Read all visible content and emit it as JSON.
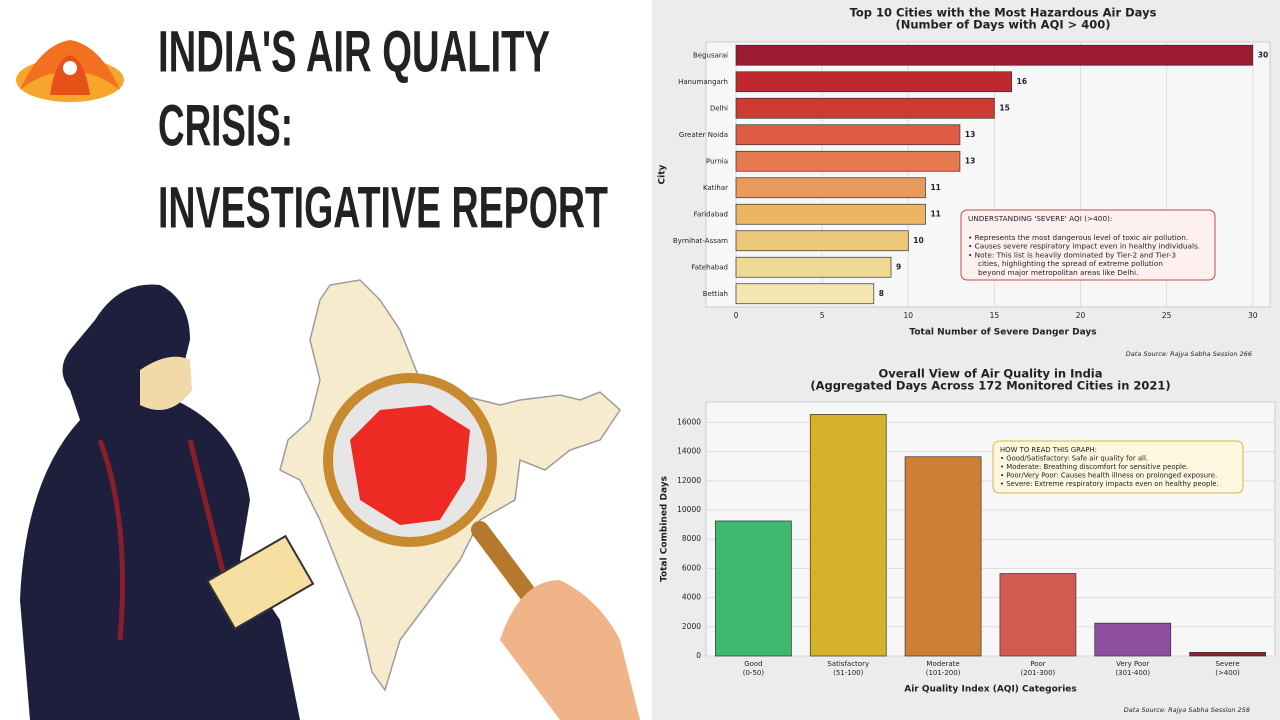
{
  "header": {
    "title_lines": [
      "INDIA'S AIR QUALITY",
      "CRISIS:",
      "INVESTIGATIVE REPORT"
    ]
  },
  "chart_data": [
    {
      "type": "bar",
      "orientation": "horizontal",
      "title": "Top 10 Cities with the Most Hazardous Air Days",
      "subtitle": "(Number of Days with AQI > 400)",
      "categories": [
        "Begusarai",
        "Hanumangarh",
        "Delhi",
        "Greater Noida",
        "Purnia",
        "Katihar",
        "Faridabad",
        "Byrnihat-Assam",
        "Fatehabad",
        "Bettiah"
      ],
      "values": [
        30,
        16,
        15,
        13,
        13,
        11,
        11,
        10,
        9,
        8
      ],
      "colors": [
        "#9b1b30",
        "#c0282f",
        "#cf3b32",
        "#de5b45",
        "#e57a4e",
        "#ea9a5a",
        "#ebb662",
        "#ecc97a",
        "#eeda94",
        "#f4e6b0"
      ],
      "xlim": [
        0,
        31
      ],
      "xticks": [
        0,
        5,
        10,
        15,
        20,
        25,
        30
      ],
      "grid": true,
      "x_label": "Total Number of Severe Danger Days",
      "y_label": "City",
      "annotation": [
        "UNDERSTANDING 'SEVERE' AQI (>400):",
        "• Represents the most dangerous level of toxic air pollution.",
        "• Causes severe respiratory impact even in healthy individuals.",
        "• Note: This list is heavily dominated by Tier-2 and Tier-3",
        "cities, highlighting the spread of extreme pollution",
        "beyond major metropolitan areas like Delhi."
      ],
      "source": "Data Source: Rajya Sabha Session 266"
    },
    {
      "type": "bar",
      "orientation": "vertical",
      "title": "Overall View of Air Quality in India",
      "subtitle": "(Aggregated Days Across 172 Monitored Cities in 2021)",
      "categories": [
        "Good",
        "Satisfactory",
        "Moderate",
        "Poor",
        "Very Poor",
        "Severe"
      ],
      "category_ranges": [
        "(0-50)",
        "(51-100)",
        "(101-200)",
        "(201-300)",
        "(301-400)",
        "(>400)"
      ],
      "values": [
        9250,
        16550,
        13650,
        5650,
        2250,
        250
      ],
      "colors": [
        "#3dba6f",
        "#d4b22a",
        "#cd7f35",
        "#d35a4e",
        "#8e4fa0",
        "#8e2233"
      ],
      "ylim": [
        0,
        17400
      ],
      "yticks": [
        0,
        2000,
        4000,
        6000,
        8000,
        10000,
        12000,
        14000,
        16000
      ],
      "grid": true,
      "x_label": "Air Quality Index (AQI) Categories",
      "y_label": "Total Combined Days",
      "annotation": [
        "HOW TO READ THIS GRAPH:",
        "• Good/Satisfactory: Safe air quality for all.",
        "• Moderate: Breathing discomfort for sensitive people.",
        "• Poor/Very Poor: Causes health illness on prolonged exposure.",
        "• Severe: Extreme respiratory impacts even on healthy people."
      ],
      "source": "Data Source: Rajya Sabha Session 258"
    }
  ]
}
